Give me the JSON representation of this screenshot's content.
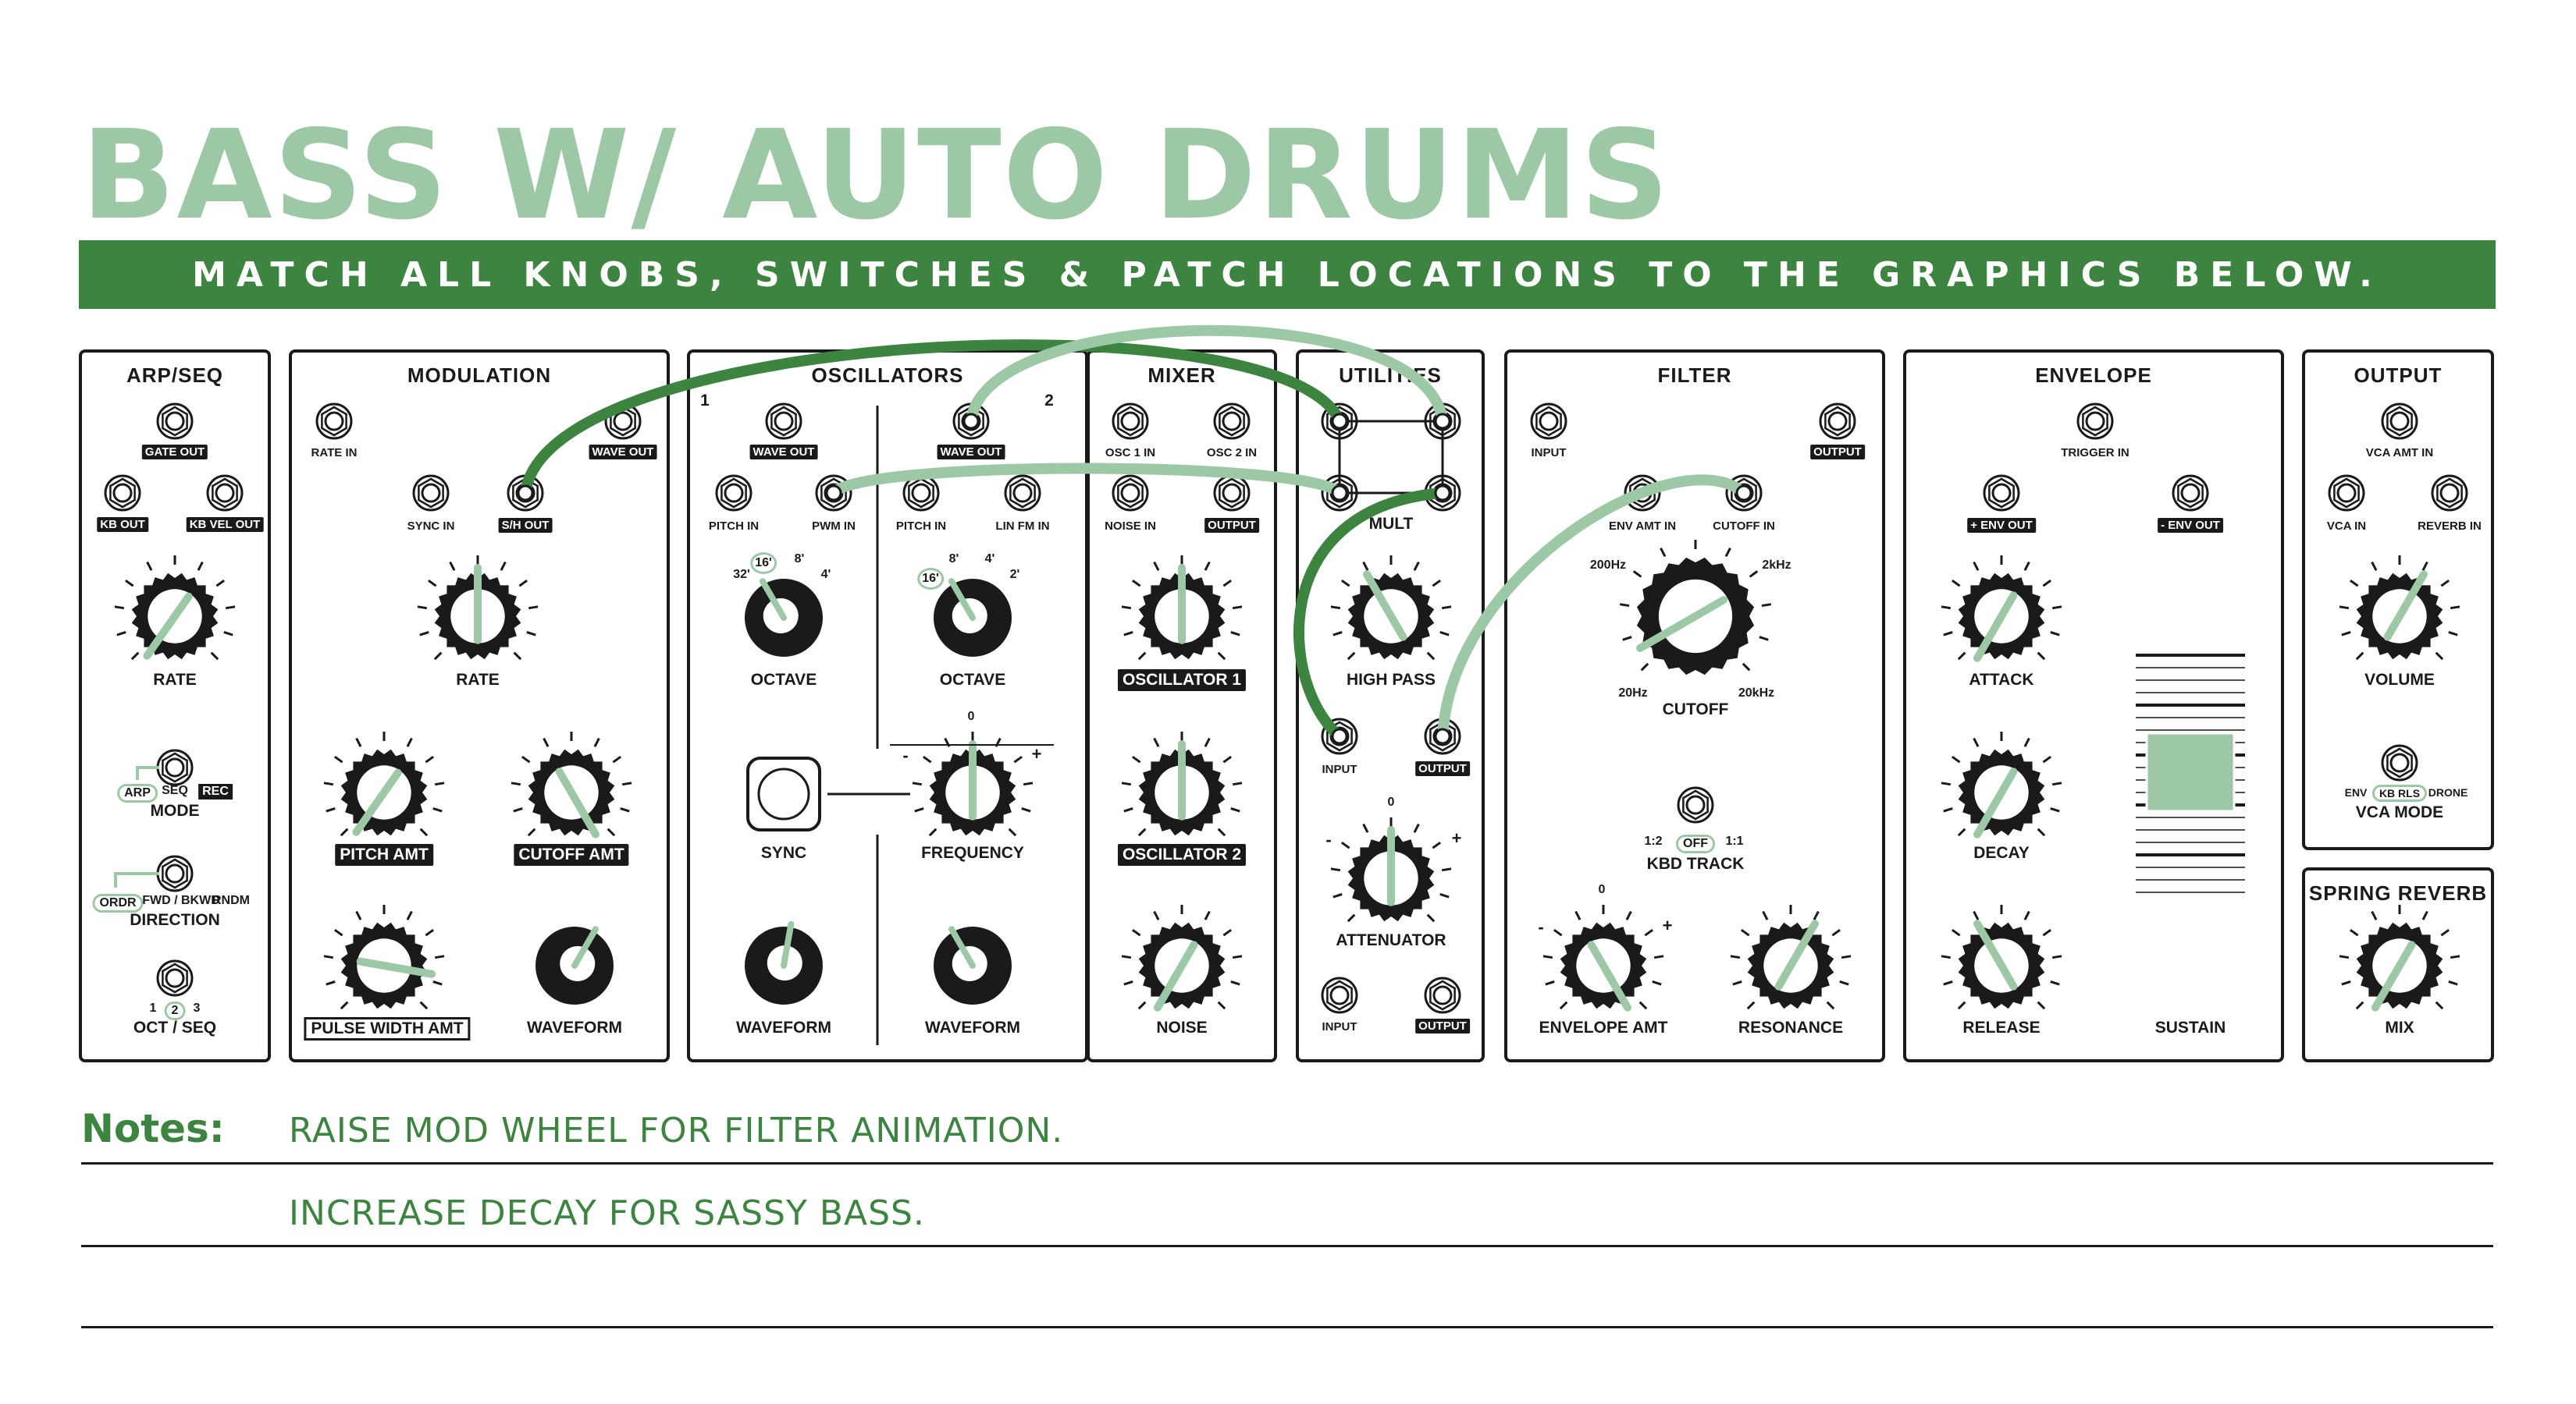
{
  "title": "BASS W/ AUTO DRUMS",
  "banner": "MATCH ALL KNOBS, SWITCHES & PATCH LOCATIONS TO THE GRAPHICS BELOW.",
  "colors": {
    "accent_light": "#9cc8a6",
    "accent_dark": "#3c8440",
    "panel_line": "#1a1a1a"
  },
  "modules": {
    "arpseq": {
      "title": "ARP/SEQ",
      "jacks": {
        "gate_out": "GATE OUT",
        "kb_out": "KB OUT",
        "kb_vel_out": "KB VEL OUT"
      },
      "rate": "RATE",
      "mode": {
        "label": "MODE",
        "opts": [
          "ARP",
          "SEQ",
          "REC"
        ]
      },
      "direction": {
        "label": "DIRECTION",
        "opts": [
          "ORDR",
          "FWD / BKWD",
          "RNDM"
        ]
      },
      "octseq": {
        "label": "OCT / SEQ",
        "opts": [
          "1",
          "2",
          "3"
        ]
      }
    },
    "modulation": {
      "title": "MODULATION",
      "jacks": {
        "rate_in": "RATE IN",
        "wave_out": "WAVE OUT",
        "sync_in": "SYNC IN",
        "sh_out": "S/H OUT"
      },
      "rate": "RATE",
      "pitch_amt": "PITCH AMT",
      "cutoff_amt": "CUTOFF AMT",
      "pulse_width_amt": "PULSE WIDTH AMT",
      "waveform": "WAVEFORM"
    },
    "oscillators": {
      "title": "OSCILLATORS",
      "num1": "1",
      "num2": "2",
      "jacks": {
        "wave_out1": "WAVE OUT",
        "wave_out2": "WAVE OUT",
        "pitch_in1": "PITCH IN",
        "pwm_in": "PWM IN",
        "pitch_in2": "PITCH IN",
        "lin_fm_in": "LIN FM IN"
      },
      "oct1": {
        "label": "OCTAVE",
        "marks": [
          "32'",
          "16'",
          "8'",
          "4'"
        ]
      },
      "oct2": {
        "label": "OCTAVE",
        "marks": [
          "16'",
          "8'",
          "4'",
          "2'"
        ]
      },
      "sync": "SYNC",
      "frequency": {
        "label": "FREQUENCY",
        "minus": "-",
        "zero": "0",
        "plus": "+"
      },
      "waveform1": "WAVEFORM",
      "waveform2": "WAVEFORM"
    },
    "mixer": {
      "title": "MIXER",
      "jacks": {
        "osc1_in": "OSC 1 IN",
        "osc2_in": "OSC 2 IN",
        "noise_in": "NOISE IN",
        "output": "OUTPUT"
      },
      "osc1": "OSCILLATOR 1",
      "osc2": "OSCILLATOR 2",
      "noise": "NOISE"
    },
    "utilities": {
      "title": "UTILITIES",
      "mult": "MULT",
      "high_pass": "HIGH PASS",
      "input": "INPUT",
      "output": "OUTPUT",
      "attenuator": {
        "label": "ATTENUATOR",
        "minus": "-",
        "zero": "0",
        "plus": "+"
      },
      "input2": "INPUT",
      "output2": "OUTPUT"
    },
    "filter": {
      "title": "FILTER",
      "jacks": {
        "input": "INPUT",
        "output": "OUTPUT",
        "env_amt_in": "ENV AMT IN",
        "cutoff_in": "CUTOFF IN"
      },
      "cutoff": {
        "label": "CUTOFF",
        "marks": [
          "200Hz",
          "2kHz",
          "20Hz",
          "20kHz"
        ]
      },
      "kbd_track": {
        "label": "KBD TRACK",
        "opts": [
          "1:2",
          "OFF",
          "1:1"
        ]
      },
      "env_amt": {
        "label": "ENVELOPE AMT",
        "minus": "-",
        "zero": "0",
        "plus": "+"
      },
      "resonance": "RESONANCE"
    },
    "envelope": {
      "title": "ENVELOPE",
      "jacks": {
        "trigger_in": "TRIGGER IN",
        "pos_env_out": "+ ENV OUT",
        "neg_env_out": "- ENV OUT"
      },
      "attack": "ATTACK",
      "decay": "DECAY",
      "release": "RELEASE",
      "sustain": "SUSTAIN",
      "sustain_level": 0.5
    },
    "output": {
      "title": "OUTPUT",
      "jacks": {
        "vca_amt_in": "VCA AMT IN",
        "vca_in": "VCA IN",
        "reverb_in": "REVERB IN"
      },
      "volume": "VOLUME",
      "vca_mode": {
        "label": "VCA MODE",
        "opts": [
          "ENV",
          "KB RLS",
          "DRONE"
        ]
      }
    },
    "spring_reverb": {
      "title": "SPRING REVERB",
      "mix": "MIX"
    }
  },
  "notes": {
    "label": "Notes:",
    "lines": [
      "RAISE MOD WHEEL FOR FILTER ANIMATION.",
      "INCREASE DECAY FOR SASSY BASS."
    ]
  }
}
